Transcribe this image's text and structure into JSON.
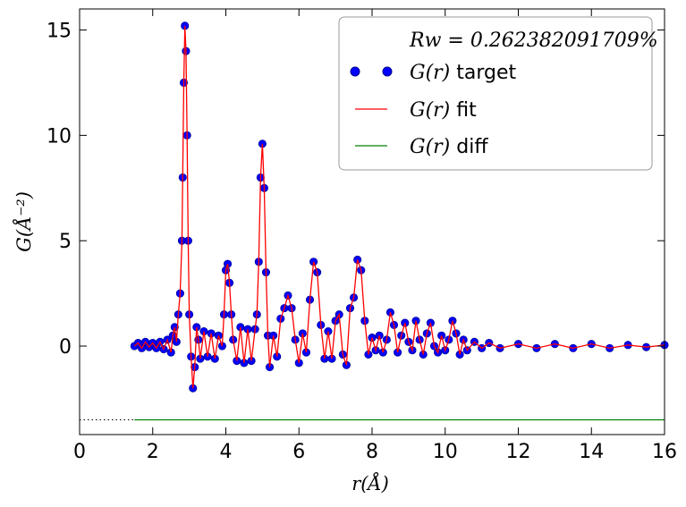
{
  "chart_data": {
    "type": "line",
    "xlabel": "r(Å)",
    "ylabel": "G(Å⁻²)",
    "xlim": [
      0,
      16
    ],
    "ylim": [
      -4.2,
      16
    ],
    "xticks": [
      0,
      2,
      4,
      6,
      8,
      10,
      12,
      14,
      16
    ],
    "yticks": [
      0,
      5,
      10,
      15
    ],
    "grid": false,
    "legend_position": "top-right",
    "legend_title": "Rw = 0.262382091709%",
    "colors": {
      "target": "#0000ff",
      "fit": "#ff0000",
      "diff": "#008000",
      "baseline": "#000000"
    },
    "diff_offset": -3.5,
    "series": [
      {
        "name": "G(r) target",
        "style": "markers",
        "points": [
          [
            1.5,
            0.0
          ],
          [
            1.6,
            0.15
          ],
          [
            1.7,
            -0.1
          ],
          [
            1.8,
            0.2
          ],
          [
            1.9,
            -0.05
          ],
          [
            2.0,
            0.15
          ],
          [
            2.1,
            -0.1
          ],
          [
            2.2,
            0.2
          ],
          [
            2.3,
            -0.15
          ],
          [
            2.4,
            0.3
          ],
          [
            2.5,
            -0.3
          ],
          [
            2.55,
            0.5
          ],
          [
            2.6,
            0.9
          ],
          [
            2.65,
            0.2
          ],
          [
            2.7,
            1.5
          ],
          [
            2.75,
            2.5
          ],
          [
            2.8,
            5.0
          ],
          [
            2.82,
            8.0
          ],
          [
            2.85,
            12.5
          ],
          [
            2.88,
            15.2
          ],
          [
            2.91,
            14.0
          ],
          [
            2.94,
            10.0
          ],
          [
            2.97,
            5.0
          ],
          [
            3.0,
            1.5
          ],
          [
            3.05,
            -0.5
          ],
          [
            3.1,
            -2.0
          ],
          [
            3.15,
            -1.0
          ],
          [
            3.2,
            0.9
          ],
          [
            3.25,
            0.3
          ],
          [
            3.3,
            -0.6
          ],
          [
            3.4,
            0.7
          ],
          [
            3.5,
            -0.5
          ],
          [
            3.6,
            0.6
          ],
          [
            3.7,
            -0.6
          ],
          [
            3.8,
            0.5
          ],
          [
            3.9,
            0.0
          ],
          [
            3.95,
            1.5
          ],
          [
            4.0,
            3.6
          ],
          [
            4.05,
            3.9
          ],
          [
            4.1,
            3.0
          ],
          [
            4.15,
            1.5
          ],
          [
            4.2,
            0.3
          ],
          [
            4.3,
            -0.7
          ],
          [
            4.4,
            0.9
          ],
          [
            4.5,
            -0.8
          ],
          [
            4.6,
            0.8
          ],
          [
            4.7,
            -0.7
          ],
          [
            4.8,
            0.8
          ],
          [
            4.85,
            1.5
          ],
          [
            4.9,
            4.0
          ],
          [
            4.95,
            8.0
          ],
          [
            5.0,
            9.6
          ],
          [
            5.05,
            7.5
          ],
          [
            5.1,
            3.5
          ],
          [
            5.15,
            0.5
          ],
          [
            5.2,
            -1.0
          ],
          [
            5.3,
            0.5
          ],
          [
            5.4,
            -0.5
          ],
          [
            5.5,
            1.3
          ],
          [
            5.6,
            1.8
          ],
          [
            5.7,
            2.4
          ],
          [
            5.8,
            1.8
          ],
          [
            5.9,
            0.3
          ],
          [
            6.0,
            -0.8
          ],
          [
            6.1,
            0.6
          ],
          [
            6.2,
            -0.3
          ],
          [
            6.3,
            2.2
          ],
          [
            6.4,
            4.0
          ],
          [
            6.5,
            3.5
          ],
          [
            6.6,
            1.0
          ],
          [
            6.7,
            -0.6
          ],
          [
            6.8,
            0.7
          ],
          [
            6.9,
            -0.6
          ],
          [
            7.0,
            1.2
          ],
          [
            7.1,
            1.5
          ],
          [
            7.2,
            -0.4
          ],
          [
            7.3,
            -0.9
          ],
          [
            7.4,
            1.8
          ],
          [
            7.5,
            2.3
          ],
          [
            7.6,
            4.1
          ],
          [
            7.7,
            3.6
          ],
          [
            7.8,
            1.2
          ],
          [
            7.9,
            -0.4
          ],
          [
            8.0,
            0.4
          ],
          [
            8.1,
            -0.2
          ],
          [
            8.2,
            0.5
          ],
          [
            8.3,
            -0.3
          ],
          [
            8.4,
            0.3
          ],
          [
            8.5,
            1.6
          ],
          [
            8.6,
            1.0
          ],
          [
            8.7,
            -0.3
          ],
          [
            8.8,
            0.5
          ],
          [
            8.9,
            1.1
          ],
          [
            9.0,
            0.2
          ],
          [
            9.1,
            -0.2
          ],
          [
            9.2,
            1.2
          ],
          [
            9.3,
            0.3
          ],
          [
            9.4,
            -0.4
          ],
          [
            9.5,
            0.6
          ],
          [
            9.6,
            1.1
          ],
          [
            9.7,
            0.0
          ],
          [
            9.8,
            -0.3
          ],
          [
            9.9,
            0.5
          ],
          [
            10.0,
            -0.2
          ],
          [
            10.1,
            0.3
          ],
          [
            10.2,
            1.2
          ],
          [
            10.3,
            0.6
          ],
          [
            10.4,
            -0.4
          ],
          [
            10.5,
            0.3
          ],
          [
            10.6,
            -0.2
          ],
          [
            10.8,
            0.2
          ],
          [
            11.0,
            -0.1
          ],
          [
            11.2,
            0.15
          ],
          [
            11.5,
            -0.1
          ],
          [
            12.0,
            0.1
          ],
          [
            12.5,
            -0.1
          ],
          [
            13.0,
            0.1
          ],
          [
            13.5,
            -0.1
          ],
          [
            14.0,
            0.1
          ],
          [
            14.5,
            -0.1
          ],
          [
            15.0,
            0.05
          ],
          [
            15.5,
            -0.05
          ],
          [
            16.0,
            0.05
          ]
        ]
      },
      {
        "name": "G(r) fit",
        "style": "line",
        "same_as": "G(r) target"
      },
      {
        "name": "G(r) diff",
        "style": "line",
        "points": [
          [
            1.5,
            -3.5
          ],
          [
            16.0,
            -3.5
          ]
        ]
      }
    ]
  },
  "legend": {
    "rw_label": "Rw = 0.262382091709%",
    "items": [
      {
        "math": "G(r)",
        "text": " target"
      },
      {
        "math": "G(r)",
        "text": " fit"
      },
      {
        "math": "G(r)",
        "text": " diff"
      }
    ]
  }
}
